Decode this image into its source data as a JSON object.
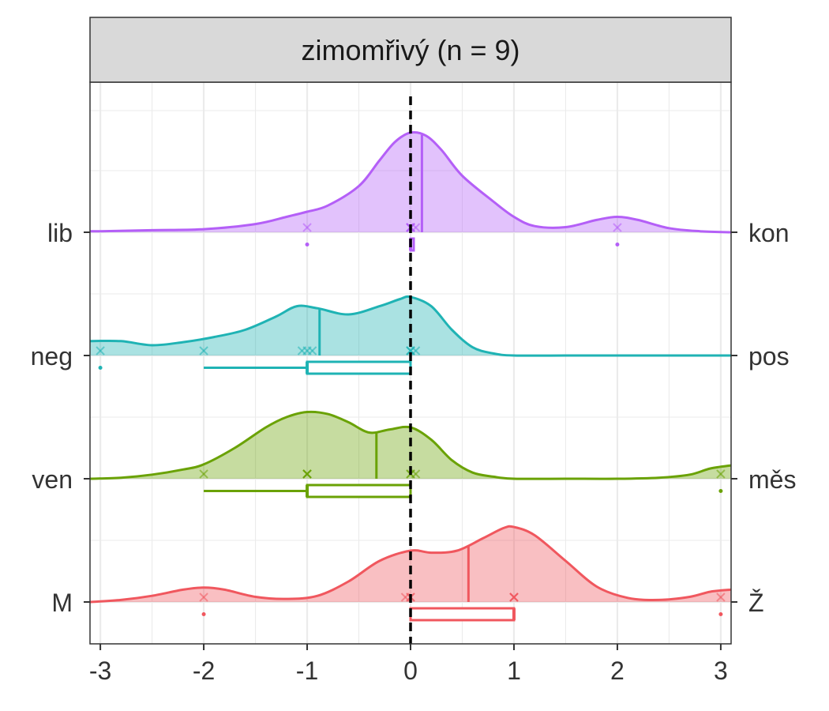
{
  "chart_data": {
    "type": "ridgeline",
    "title": "zimomřivý (n = 9)",
    "xlabel": "",
    "ylabel": "",
    "xlim": [
      -3.1,
      3.1
    ],
    "x_ticks": [
      -3,
      -2,
      -1,
      0,
      1,
      2,
      3
    ],
    "x_tick_labels": [
      "-3",
      "-2",
      "-1",
      "0",
      "1",
      "2",
      "3"
    ],
    "reference_line_x": 0,
    "grid": true,
    "series": [
      {
        "left_label": "lib",
        "right_label": "kon",
        "color": "#B45FF7",
        "mean": 0.11,
        "points": [
          -1,
          0,
          0,
          0,
          0,
          0,
          0,
          0.05,
          2
        ],
        "box": {
          "whisker_low": 0,
          "q1": 0,
          "median": 0,
          "q3": 0,
          "whisker_high": 0
        },
        "outliers": [
          -1,
          2
        ],
        "density": [
          [
            -3.1,
            0.01
          ],
          [
            -3,
            0.01
          ],
          [
            -2.5,
            0.02
          ],
          [
            -2,
            0.03
          ],
          [
            -1.5,
            0.08
          ],
          [
            -1.2,
            0.15
          ],
          [
            -1,
            0.2
          ],
          [
            -0.8,
            0.26
          ],
          [
            -0.5,
            0.45
          ],
          [
            -0.3,
            0.7
          ],
          [
            -0.15,
            0.88
          ],
          [
            0,
            0.97
          ],
          [
            0.15,
            0.94
          ],
          [
            0.3,
            0.8
          ],
          [
            0.5,
            0.55
          ],
          [
            0.8,
            0.3
          ],
          [
            1.0,
            0.15
          ],
          [
            1.2,
            0.06
          ],
          [
            1.5,
            0.05
          ],
          [
            1.8,
            0.12
          ],
          [
            2.0,
            0.15
          ],
          [
            2.2,
            0.12
          ],
          [
            2.5,
            0.04
          ],
          [
            2.8,
            0.01
          ],
          [
            3.1,
            0.0
          ]
        ]
      },
      {
        "left_label": "neg",
        "right_label": "pos",
        "color": "#1FB3B4",
        "mean": -0.88,
        "points": [
          -3,
          -2,
          -1.05,
          -1,
          -0.95,
          0,
          0,
          0,
          0.05
        ],
        "box": {
          "whisker_low": -2,
          "q1": -1,
          "median": -1,
          "q3": 0,
          "whisker_high": 0
        },
        "outliers": [
          -3
        ],
        "density": [
          [
            -3.1,
            0.14
          ],
          [
            -2.8,
            0.14
          ],
          [
            -2.5,
            0.1
          ],
          [
            -2.2,
            0.13
          ],
          [
            -1.9,
            0.18
          ],
          [
            -1.6,
            0.25
          ],
          [
            -1.3,
            0.38
          ],
          [
            -1.1,
            0.48
          ],
          [
            -0.9,
            0.46
          ],
          [
            -0.6,
            0.4
          ],
          [
            -0.3,
            0.48
          ],
          [
            -0.1,
            0.55
          ],
          [
            0,
            0.57
          ],
          [
            0.2,
            0.48
          ],
          [
            0.4,
            0.25
          ],
          [
            0.6,
            0.08
          ],
          [
            0.8,
            0.02
          ],
          [
            1,
            0.0
          ],
          [
            1.5,
            0.0
          ],
          [
            2,
            0.0
          ],
          [
            3.1,
            0.0
          ]
        ]
      },
      {
        "left_label": "ven",
        "right_label": "měs",
        "color": "#6AA205",
        "mean": -0.33,
        "points": [
          -2,
          -1,
          -1,
          -1,
          -1,
          0,
          0,
          0.05,
          3
        ],
        "box": {
          "whisker_low": -2,
          "q1": -1,
          "median": -1,
          "q3": 0,
          "whisker_high": 0
        },
        "outliers": [
          3
        ],
        "density": [
          [
            -3.1,
            0.0
          ],
          [
            -2.8,
            0.01
          ],
          [
            -2.5,
            0.04
          ],
          [
            -2.2,
            0.09
          ],
          [
            -2,
            0.14
          ],
          [
            -1.7,
            0.3
          ],
          [
            -1.4,
            0.5
          ],
          [
            -1.2,
            0.6
          ],
          [
            -1,
            0.65
          ],
          [
            -0.8,
            0.63
          ],
          [
            -0.6,
            0.55
          ],
          [
            -0.4,
            0.45
          ],
          [
            -0.2,
            0.48
          ],
          [
            0,
            0.5
          ],
          [
            0.2,
            0.38
          ],
          [
            0.4,
            0.18
          ],
          [
            0.6,
            0.06
          ],
          [
            0.8,
            0.02
          ],
          [
            1,
            0.0
          ],
          [
            1.5,
            0.0
          ],
          [
            2,
            0.0
          ],
          [
            2.4,
            0.01
          ],
          [
            2.7,
            0.04
          ],
          [
            2.9,
            0.1
          ],
          [
            3.1,
            0.13
          ]
        ]
      },
      {
        "left_label": "M",
        "right_label": "Ž",
        "color": "#F0575E",
        "mean": 0.56,
        "points": [
          -2,
          -0.05,
          0,
          0,
          1,
          1,
          1,
          1,
          3
        ],
        "box": {
          "whisker_low": 0,
          "q1": 0,
          "median": 1,
          "q3": 1,
          "whisker_high": 1
        },
        "outliers": [
          -2,
          3
        ],
        "density": [
          [
            -3.1,
            0.0
          ],
          [
            -2.8,
            0.02
          ],
          [
            -2.5,
            0.06
          ],
          [
            -2.2,
            0.12
          ],
          [
            -2,
            0.14
          ],
          [
            -1.8,
            0.12
          ],
          [
            -1.5,
            0.05
          ],
          [
            -1.2,
            0.03
          ],
          [
            -0.9,
            0.06
          ],
          [
            -0.6,
            0.2
          ],
          [
            -0.3,
            0.4
          ],
          [
            0,
            0.5
          ],
          [
            0.2,
            0.48
          ],
          [
            0.45,
            0.5
          ],
          [
            0.7,
            0.62
          ],
          [
            0.9,
            0.72
          ],
          [
            1.0,
            0.73
          ],
          [
            1.2,
            0.65
          ],
          [
            1.5,
            0.4
          ],
          [
            1.8,
            0.15
          ],
          [
            2.1,
            0.04
          ],
          [
            2.4,
            0.02
          ],
          [
            2.7,
            0.05
          ],
          [
            2.9,
            0.1
          ],
          [
            3.1,
            0.12
          ]
        ]
      }
    ]
  }
}
